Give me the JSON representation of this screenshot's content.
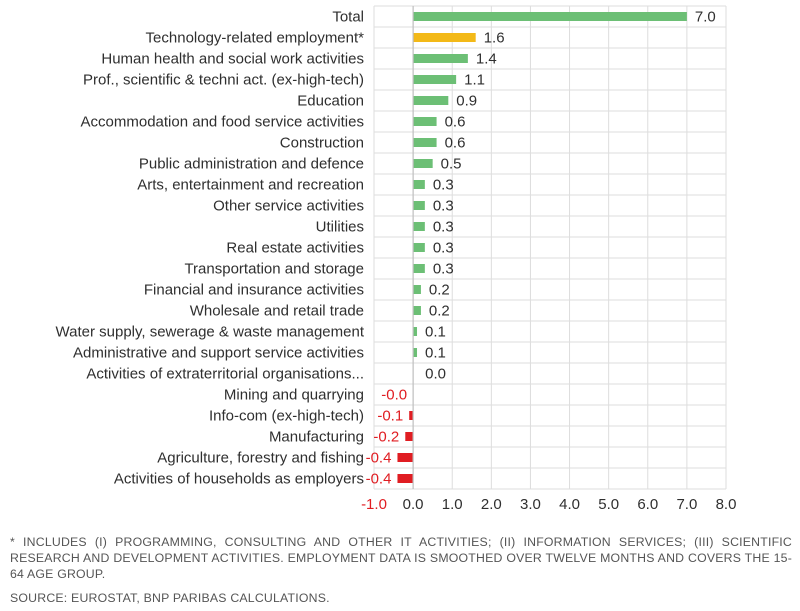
{
  "chart_data": {
    "type": "bar",
    "orientation": "horizontal",
    "categories": [
      "Total",
      "Technology-related employment*",
      "Human health and social work activities",
      "Prof., scientific & techni act. (ex-high-tech)",
      "Education",
      "Accommodation and food service activities",
      "Construction",
      "Public administration and defence",
      "Arts, entertainment and recreation",
      "Other service activities",
      "Utilities",
      "Real estate activities",
      "Transportation and storage",
      "Financial and insurance activities",
      "Wholesale and retail trade",
      "Water supply, sewerage & waste management",
      "Administrative and support service activities",
      "Activities of extraterritorial organisations...",
      "Mining and quarrying",
      "Info-com (ex-high-tech)",
      "Manufacturing",
      "Agriculture, forestry and fishing",
      "Activities of households as employers"
    ],
    "values": [
      7.0,
      1.6,
      1.4,
      1.1,
      0.9,
      0.6,
      0.6,
      0.5,
      0.3,
      0.3,
      0.3,
      0.3,
      0.3,
      0.2,
      0.2,
      0.1,
      0.1,
      0.0,
      -0.0,
      -0.1,
      -0.2,
      -0.4,
      -0.4
    ],
    "value_labels": [
      "7.0",
      "1.6",
      "1.4",
      "1.1",
      "0.9",
      "0.6",
      "0.6",
      "0.5",
      "0.3",
      "0.3",
      "0.3",
      "0.3",
      "0.3",
      "0.2",
      "0.2",
      "0.1",
      "0.1",
      "0.0",
      "-0.0",
      "-0.1",
      "-0.2",
      "-0.4",
      "-0.4"
    ],
    "xlim": [
      -1.0,
      8.0
    ],
    "x_ticks": [
      "-1.0",
      "0.0",
      "1.0",
      "2.0",
      "3.0",
      "4.0",
      "5.0",
      "6.0",
      "7.0",
      "8.0"
    ],
    "grid": true,
    "title": "",
    "xlabel": "",
    "ylabel": "",
    "colors": {
      "positive": "#6cbf75",
      "highlight": "#f3b918",
      "negative": "#e01d22",
      "negative_label": "#e01d22",
      "label": "#2f2f2f",
      "grid": "#dddddd",
      "axis": "#bfbfbf"
    },
    "highlight_category": "Technology-related employment*"
  },
  "footnotes": {
    "note": "* Includes (i) programming, consulting and other IT activities; (ii) information services; (iii) scientific research and development activities. Employment data is smoothed over twelve months and covers the 15-64 age group.",
    "source": "Source: Eurostat, BNP Paribas calculations."
  }
}
